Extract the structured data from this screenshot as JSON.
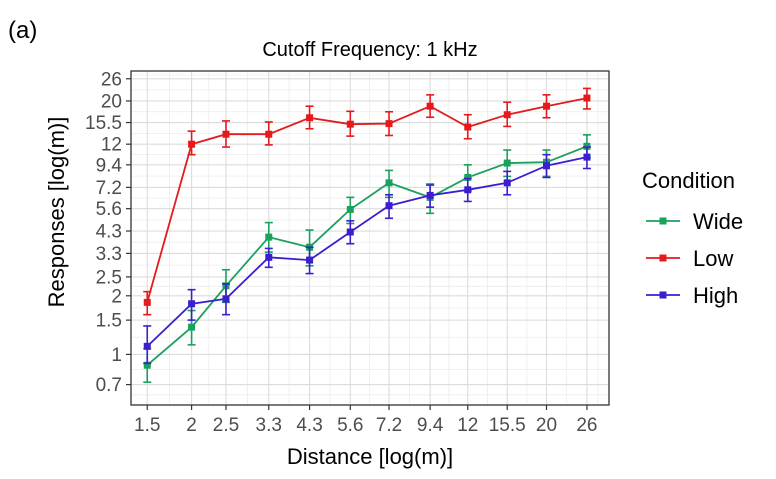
{
  "panel_label": "(a)",
  "chart_data": {
    "type": "line",
    "title": "Cutoff Frequency: 1 kHz",
    "xlabel": "Distance [log(m)]",
    "ylabel": "Responses [log(m)]",
    "x_scale": "log",
    "y_scale": "log",
    "grid": true,
    "x": [
      1.5,
      2,
      2.5,
      3.3,
      4.3,
      5.6,
      7.2,
      9.4,
      12,
      15.5,
      20,
      26
    ],
    "x_tick_labels": [
      "1.5",
      "2",
      "2.5",
      "3.3",
      "4.3",
      "5.6",
      "7.2",
      "9.4",
      "12",
      "15.5",
      "20",
      "26"
    ],
    "y_ticks": [
      0.7,
      1,
      1.5,
      2,
      2.5,
      3.3,
      4.3,
      5.6,
      7.2,
      9.4,
      12,
      15.5,
      20,
      26
    ],
    "y_tick_labels": [
      "0.7",
      "1",
      "1.5",
      "2",
      "2.5",
      "3.3",
      "4.3",
      "5.6",
      "7.2",
      "9.4",
      "12",
      "15.5",
      "20",
      "26"
    ],
    "xlim": [
      1.35,
      30
    ],
    "ylim": [
      0.55,
      28.5
    ],
    "legend": {
      "title": "Condition",
      "position": "right"
    },
    "series": [
      {
        "name": "Wide",
        "color": "#1aa15e",
        "values": [
          0.88,
          1.38,
          2.25,
          4.0,
          3.55,
          5.55,
          7.6,
          6.4,
          8.1,
          9.6,
          9.7,
          11.7
        ],
        "err_low": [
          0.72,
          1.12,
          1.85,
          3.35,
          2.85,
          4.7,
          6.4,
          5.3,
          6.9,
          8.2,
          8.2,
          10.2
        ],
        "err_high": [
          1.07,
          1.68,
          2.72,
          4.75,
          4.35,
          6.4,
          8.8,
          7.5,
          9.4,
          11.2,
          11.2,
          13.4
        ]
      },
      {
        "name": "Low",
        "color": "#e41a1c",
        "values": [
          1.85,
          12.0,
          13.5,
          13.5,
          16.4,
          15.2,
          15.3,
          18.8,
          14.7,
          17.0,
          18.8,
          20.7
        ],
        "err_low": [
          1.6,
          10.6,
          11.6,
          11.9,
          14.4,
          13.2,
          13.3,
          16.5,
          12.8,
          14.8,
          16.4,
          18.2
        ],
        "err_high": [
          2.1,
          14.0,
          15.8,
          15.6,
          18.8,
          17.7,
          17.6,
          21.5,
          17.0,
          19.7,
          21.5,
          23.2
        ]
      },
      {
        "name": "High",
        "color": "#3b1fcf",
        "values": [
          1.1,
          1.82,
          1.93,
          3.15,
          3.05,
          4.25,
          5.8,
          6.55,
          7.0,
          7.6,
          9.3,
          10.3
        ],
        "err_low": [
          0.9,
          1.5,
          1.6,
          2.8,
          2.6,
          3.7,
          5.0,
          5.7,
          6.1,
          6.6,
          8.1,
          9.0
        ],
        "err_high": [
          1.4,
          2.15,
          2.3,
          3.5,
          3.55,
          4.85,
          6.6,
          7.4,
          8.0,
          8.7,
          10.6,
          11.6
        ]
      }
    ]
  }
}
